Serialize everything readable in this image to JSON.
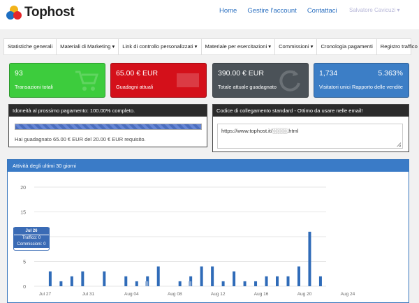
{
  "header": {
    "brand": "Tophost",
    "nav": [
      "Home",
      "Gestire l'account",
      "Contattaci"
    ],
    "user": "Salvatore Cavicuzi"
  },
  "subnav": [
    "Statistiche generali",
    "Materiali di Marketing ▾",
    "Link di controllo personalizzati ▾",
    "Materiale per esercitazioni ▾",
    "Commissioni ▾",
    "Cronologia pagamenti",
    "Registro traffico"
  ],
  "cards": {
    "transactions": {
      "value": "93",
      "label": "Transazioni totali",
      "color": "#3dcc3d"
    },
    "current_earnings": {
      "value": "65.00 € EUR",
      "label": "Guadagni attuali",
      "color": "#d4101a"
    },
    "total_earned": {
      "value": "390.00 € EUR",
      "label": "Totale attuale guadagnato",
      "color": "#4b5258"
    },
    "visitors": {
      "value": "1,734",
      "label": "Visitatori unici",
      "value2": "5.363%",
      "label2": "Rapporto delle vendite",
      "color": "#3c7ec6"
    }
  },
  "payment_panel": {
    "title": "Idoneità al prossimo pagamento: 100.00% completo.",
    "progress": 100,
    "note": "Hai guadagnato 65.00 € EUR del 20.00 € EUR requisito."
  },
  "link_panel": {
    "title": "Codice di collegamento standard - Ottimo da usare nelle email!",
    "value": "https://www.tophost.it/░░░░.html"
  },
  "chart_data": {
    "type": "bar",
    "title": "Attività degli ultimi 30 giorni",
    "ylim": [
      0,
      20
    ],
    "yticks": [
      "20",
      "15",
      "10",
      "5",
      "0"
    ],
    "xtick_labels": [
      "Jul 27",
      "Jul 31",
      "Aug 04",
      "Aug 08",
      "Aug 12",
      "Aug 16",
      "Aug 20",
      "Aug 24"
    ],
    "series": [
      {
        "name": "Traffico",
        "values": [
          0,
          3,
          1,
          2,
          3,
          0,
          3,
          0,
          2,
          1,
          2,
          4,
          0,
          1,
          2,
          4,
          4,
          1,
          3,
          1,
          1,
          2,
          2,
          2,
          4,
          11,
          2
        ]
      },
      {
        "name": "Commissioni",
        "values": [
          0,
          0,
          0,
          0,
          0,
          0,
          0,
          0,
          0,
          0,
          1,
          0,
          0,
          0,
          1,
          0,
          0,
          0,
          0,
          0,
          0,
          0,
          0,
          0,
          0,
          0,
          0
        ]
      }
    ],
    "tooltip": {
      "title": "Jul 26",
      "traffic": "Traffico: 0",
      "commissions": "Commissioni: 0"
    }
  }
}
